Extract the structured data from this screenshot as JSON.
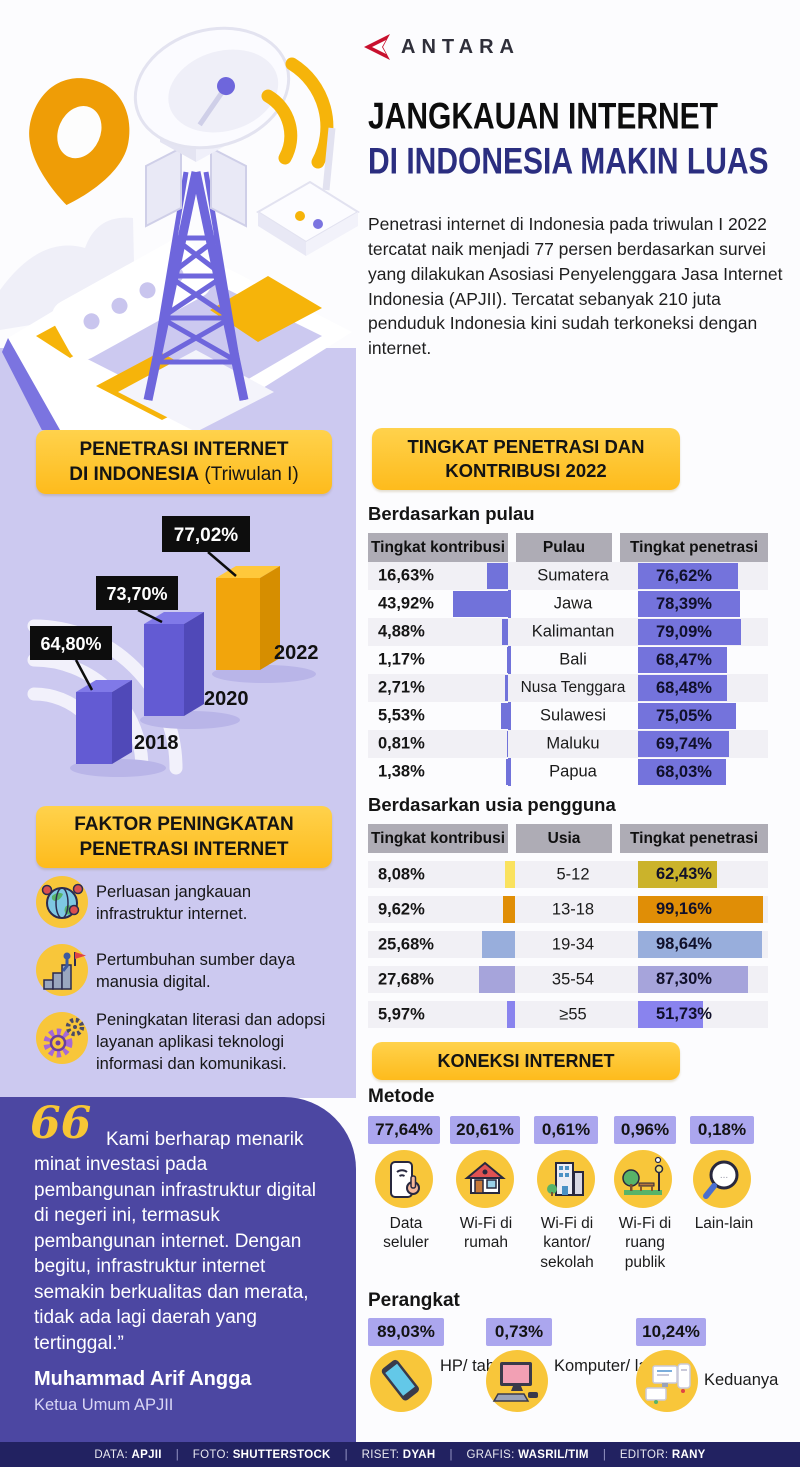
{
  "brand": {
    "name": "ANTARA"
  },
  "header": {
    "title_line1": "JANGKAUAN INTERNET",
    "title_line2": "DI INDONESIA MAKIN LUAS",
    "intro": "Penetrasi internet di Indonesia pada triwulan I 2022 tercatat naik menjadi 77 persen berdasarkan survei yang dilakukan Asosiasi Penyelenggara Jasa Internet Indonesia (APJII). Tercatat sebanyak 210 juta penduduk Indonesia kini sudah terkoneksi dengan internet."
  },
  "section_badges": {
    "tingkat": {
      "line1": "TINGKAT PENETRASI DAN",
      "line2": "KONTRIBUSI 2022"
    },
    "faktor": {
      "line1": "FAKTOR PENINGKATAN",
      "line2": "PENETRASI INTERNET"
    },
    "koneksi": "KONEKSI INTERNET"
  },
  "chart_data": [
    {
      "type": "bar",
      "title": "PENETRASI INTERNET DI INDONESIA (Triwulan I)",
      "badge_line1": "PENETRASI INTERNET",
      "badge_line2_bold": "DI INDONESIA",
      "badge_line2_normal": " (Triwulan I)",
      "categories": [
        "2018",
        "2020",
        "2022"
      ],
      "values": [
        64.8,
        73.7,
        77.02
      ],
      "value_labels": [
        "64,80%",
        "73,70%",
        "77,02%"
      ],
      "bar_colors": [
        "#635BD3",
        "#635BD3",
        "#F2A50C"
      ],
      "unit": "%"
    },
    {
      "type": "table",
      "title": "Berdasarkan pulau",
      "columns": [
        "Tingkat kontribusi",
        "Pulau",
        "Tingkat penetrasi"
      ],
      "bar_color": "#7172DA",
      "rows": [
        {
          "kontribusi": "16,63%",
          "kontribusi_val": 16.63,
          "label": "Sumatera",
          "penetrasi": "76,62%",
          "penetrasi_val": 76.62
        },
        {
          "kontribusi": "43,92%",
          "kontribusi_val": 43.92,
          "label": "Jawa",
          "penetrasi": "78,39%",
          "penetrasi_val": 78.39
        },
        {
          "kontribusi": "4,88%",
          "kontribusi_val": 4.88,
          "label": "Kalimantan",
          "penetrasi": "79,09%",
          "penetrasi_val": 79.09
        },
        {
          "kontribusi": "1,17%",
          "kontribusi_val": 1.17,
          "label": "Bali",
          "penetrasi": "68,47%",
          "penetrasi_val": 68.47
        },
        {
          "kontribusi": "2,71%",
          "kontribusi_val": 2.71,
          "label": "Nusa Tenggara",
          "penetrasi": "68,48%",
          "penetrasi_val": 68.48
        },
        {
          "kontribusi": "5,53%",
          "kontribusi_val": 5.53,
          "label": "Sulawesi",
          "penetrasi": "75,05%",
          "penetrasi_val": 75.05
        },
        {
          "kontribusi": "0,81%",
          "kontribusi_val": 0.81,
          "label": "Maluku",
          "penetrasi": "69,74%",
          "penetrasi_val": 69.74
        },
        {
          "kontribusi": "1,38%",
          "kontribusi_val": 1.38,
          "label": "Papua",
          "penetrasi": "68,03%",
          "penetrasi_val": 68.03
        }
      ]
    },
    {
      "type": "table",
      "title": "Berdasarkan usia pengguna",
      "columns": [
        "Tingkat kontribusi",
        "Usia",
        "Tingkat penetrasi"
      ],
      "rows": [
        {
          "kontribusi": "8,08%",
          "kontribusi_val": 8.08,
          "label": "5-12",
          "penetrasi": "62,43%",
          "penetrasi_val": 62.43,
          "k_color": "#FAE25E",
          "p_color": "#CBB32B"
        },
        {
          "kontribusi": "9,62%",
          "kontribusi_val": 9.62,
          "label": "13-18",
          "penetrasi": "99,16%",
          "penetrasi_val": 99.16,
          "k_color": "#E08E06",
          "p_color": "#E08E06"
        },
        {
          "kontribusi": "25,68%",
          "kontribusi_val": 25.68,
          "label": "19-34",
          "penetrasi": "98,64%",
          "penetrasi_val": 98.64,
          "k_color": "#98AEDC",
          "p_color": "#98AEDC"
        },
        {
          "kontribusi": "27,68%",
          "kontribusi_val": 27.68,
          "label": "35-54",
          "penetrasi": "87,30%",
          "penetrasi_val": 87.3,
          "k_color": "#A6A4DB",
          "p_color": "#A6A4DB"
        },
        {
          "kontribusi": "5,97%",
          "kontribusi_val": 5.97,
          "label": "≥55",
          "penetrasi": "51,73%",
          "penetrasi_val": 51.73,
          "k_color": "#8983EE",
          "p_color": "#8983EE"
        }
      ]
    },
    {
      "type": "bar",
      "title": "Metode",
      "categories": [
        "Data seluler",
        "Wi-Fi di rumah",
        "Wi-Fi di kantor/ sekolah",
        "Wi-Fi di ruang publik",
        "Lain-lain"
      ],
      "values": [
        77.64,
        20.61,
        0.61,
        0.96,
        0.18
      ],
      "value_labels": [
        "77,64%",
        "20,61%",
        "0,61%",
        "0,96%",
        "0,18%"
      ]
    },
    {
      "type": "bar",
      "title": "Perangkat",
      "categories": [
        "HP/ tablet",
        "Komputer/ laptop",
        "Keduanya"
      ],
      "values": [
        89.03,
        0.73,
        10.24
      ],
      "value_labels": [
        "89,03%",
        "0,73%",
        "10,24%"
      ]
    }
  ],
  "factors": {
    "items": [
      {
        "icon": "globe-users-icon",
        "text": "Perluasan jangkauan infrastruktur internet."
      },
      {
        "icon": "growth-flag-icon",
        "text": "Pertumbuhan sumber daya manusia digital."
      },
      {
        "icon": "gears-icon",
        "text": "Peningkatan literasi dan adopsi layanan aplikasi teknologi informasi dan komunikasi."
      }
    ]
  },
  "quote": {
    "text": "Kami berharap menarik minat investasi pada pembangunan infrastruktur digital di negeri ini, termasuk pembangunan internet. Dengan begitu, infrastruktur internet semakin berkualitas dan merata, tidak ada lagi daerah yang tertinggal.”",
    "name": "Muhammad Arif Angga",
    "role": "Ketua Umum APJII"
  },
  "footer": {
    "separator": "|",
    "credits": [
      {
        "label": "DATA:",
        "value": "APJII"
      },
      {
        "label": "FOTO:",
        "value": "SHUTTERSTOCK"
      },
      {
        "label": "RISET:",
        "value": "DYAH"
      },
      {
        "label": "GRAFIS:",
        "value": "WASRIL/TIM"
      },
      {
        "label": "EDITOR:",
        "value": "RANY"
      }
    ]
  },
  "colors": {
    "accent_yellow": "#FEBB1C",
    "lavender_bg": "#CCC9F0",
    "purple_bar": "#7473DC",
    "quote_bg": "#4C47A2",
    "footer_bg": "#222261",
    "navy_title": "#2B2E80",
    "badge_lavender": "#ABA6EE",
    "logo_red": "#C8102E"
  }
}
